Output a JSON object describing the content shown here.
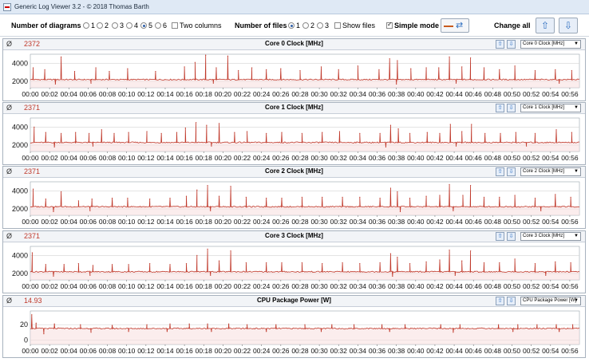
{
  "window": {
    "title": "Generic Log Viewer 3.2 - © 2018 Thomas Barth"
  },
  "toolbar": {
    "diagrams_label": "Number of diagrams",
    "diagram_options": [
      "1",
      "2",
      "3",
      "4",
      "5",
      "6"
    ],
    "diagram_selected": "5",
    "two_columns_label": "Two columns",
    "two_columns_checked": false,
    "files_label": "Number of files",
    "file_options": [
      "1",
      "2",
      "3"
    ],
    "file_selected": "1",
    "show_files_label": "Show files",
    "show_files_checked": false,
    "simple_mode_label": "Simple mode",
    "simple_mode_checked": true,
    "change_all_label": "Change all",
    "up_icon": "arrow-up-icon",
    "down_icon": "arrow-down-icon"
  },
  "colors": {
    "series": "#c0392b",
    "fill": "#f7dede",
    "grid": "#d4d4d4"
  },
  "x_ticks": [
    "00:00",
    "00:02",
    "00:04",
    "00:06",
    "00:08",
    "00:10",
    "00:12",
    "00:14",
    "00:16",
    "00:18",
    "00:20",
    "00:22",
    "00:24",
    "00:26",
    "00:28",
    "00:30",
    "00:32",
    "00:34",
    "00:36",
    "00:38",
    "00:40",
    "00:42",
    "00:44",
    "00:46",
    "00:48",
    "00:50",
    "00:52",
    "00:54",
    "00:56"
  ],
  "panels": [
    {
      "avg_symbol": "Ø",
      "avg": "2372",
      "title": "Core 0 Clock [MHz]",
      "selector": "Core 0 Clock [MHz]",
      "chart_data": {
        "type": "line",
        "x_unit": "min",
        "y_ticks": [
          2000,
          4000
        ],
        "ylim": [
          1300,
          5000
        ],
        "baseline": 2200,
        "spikes": [
          [
            0.3,
            3500
          ],
          [
            1.5,
            3300
          ],
          [
            3.2,
            4700
          ],
          [
            4.6,
            3100
          ],
          [
            6.8,
            3500
          ],
          [
            8.2,
            3100
          ],
          [
            10.1,
            3400
          ],
          [
            13,
            3100
          ],
          [
            16,
            3600
          ],
          [
            17.1,
            4100
          ],
          [
            18.2,
            4900
          ],
          [
            19.3,
            3500
          ],
          [
            20.5,
            4800
          ],
          [
            21.6,
            3200
          ],
          [
            23,
            3500
          ],
          [
            24.5,
            3300
          ],
          [
            26,
            3400
          ],
          [
            28,
            3200
          ],
          [
            30.2,
            3600
          ],
          [
            32,
            3300
          ],
          [
            34,
            3700
          ],
          [
            36.2,
            3300
          ],
          [
            37.3,
            4500
          ],
          [
            38.1,
            4300
          ],
          [
            39.5,
            3400
          ],
          [
            41.1,
            3500
          ],
          [
            42.4,
            3500
          ],
          [
            43.5,
            4700
          ],
          [
            44.8,
            3600
          ],
          [
            45.7,
            4600
          ],
          [
            47.1,
            3500
          ],
          [
            48.7,
            3300
          ],
          [
            50.3,
            3700
          ],
          [
            52.4,
            3200
          ],
          [
            54.5,
            3300
          ],
          [
            56.2,
            3200
          ]
        ],
        "dips": [
          [
            2.6,
            1700
          ],
          [
            6.3,
            1800
          ],
          [
            19,
            1800
          ],
          [
            38,
            1700
          ],
          [
            44.2,
            1800
          ],
          [
            54.9,
            1800
          ]
        ]
      }
    },
    {
      "avg_symbol": "Ø",
      "avg": "2371",
      "title": "Core 1 Clock [MHz]",
      "selector": "Core 1 Clock [MHz]",
      "chart_data": {
        "type": "line",
        "x_unit": "min",
        "y_ticks": [
          2000,
          4000
        ],
        "ylim": [
          1300,
          5000
        ],
        "baseline": 2300,
        "spikes": [
          [
            0.4,
            4000
          ],
          [
            1.6,
            3400
          ],
          [
            3.2,
            3300
          ],
          [
            4.7,
            3400
          ],
          [
            6.1,
            3300
          ],
          [
            7.4,
            3700
          ],
          [
            8.7,
            3300
          ],
          [
            10.2,
            3400
          ],
          [
            12.1,
            3500
          ],
          [
            13.6,
            3300
          ],
          [
            15.2,
            3400
          ],
          [
            16.1,
            3900
          ],
          [
            17.2,
            4500
          ],
          [
            18.3,
            4200
          ],
          [
            19.6,
            4400
          ],
          [
            21.2,
            3400
          ],
          [
            22.5,
            3500
          ],
          [
            24.5,
            3300
          ],
          [
            26.1,
            3400
          ],
          [
            28.2,
            3300
          ],
          [
            30.3,
            3400
          ],
          [
            32.1,
            3500
          ],
          [
            34.2,
            3300
          ],
          [
            36.3,
            3300
          ],
          [
            37.4,
            4200
          ],
          [
            38.2,
            3800
          ],
          [
            39.4,
            3300
          ],
          [
            41.2,
            3400
          ],
          [
            42.5,
            3300
          ],
          [
            43.6,
            4300
          ],
          [
            44.8,
            3500
          ],
          [
            45.8,
            4300
          ],
          [
            47.2,
            3300
          ],
          [
            48.8,
            3300
          ],
          [
            50.4,
            3400
          ],
          [
            52.4,
            3300
          ],
          [
            54.6,
            3700
          ],
          [
            56.2,
            3400
          ]
        ],
        "dips": [
          [
            2.5,
            1800
          ],
          [
            6.5,
            1900
          ],
          [
            18.8,
            1900
          ],
          [
            36.9,
            1800
          ],
          [
            44.2,
            1900
          ],
          [
            51.5,
            1900
          ]
        ]
      }
    },
    {
      "avg_symbol": "Ø",
      "avg": "2371",
      "title": "Core 2 Clock [MHz]",
      "selector": "Core 2 Clock [MHz]",
      "chart_data": {
        "type": "line",
        "x_unit": "min",
        "y_ticks": [
          2000,
          4000
        ],
        "ylim": [
          1300,
          5000
        ],
        "baseline": 2250,
        "spikes": [
          [
            0.3,
            4200
          ],
          [
            1.6,
            3100
          ],
          [
            3.2,
            3900
          ],
          [
            5,
            2900
          ],
          [
            6.4,
            3100
          ],
          [
            8.5,
            3200
          ],
          [
            10.1,
            3200
          ],
          [
            12.4,
            3100
          ],
          [
            14.5,
            3200
          ],
          [
            16.2,
            3400
          ],
          [
            17.3,
            4100
          ],
          [
            18.4,
            4600
          ],
          [
            19.6,
            3400
          ],
          [
            20.8,
            4500
          ],
          [
            22.4,
            3300
          ],
          [
            24.5,
            3200
          ],
          [
            26.1,
            3200
          ],
          [
            28.2,
            3300
          ],
          [
            30.3,
            3300
          ],
          [
            32.4,
            3300
          ],
          [
            34.2,
            3300
          ],
          [
            36.3,
            3200
          ],
          [
            37.4,
            4300
          ],
          [
            38.1,
            3900
          ],
          [
            39.4,
            3200
          ],
          [
            41.1,
            3400
          ],
          [
            42.5,
            3500
          ],
          [
            43.5,
            4700
          ],
          [
            44.9,
            3500
          ],
          [
            45.7,
            4600
          ],
          [
            47.1,
            3300
          ],
          [
            48.7,
            3300
          ],
          [
            50.3,
            3500
          ],
          [
            52.4,
            3200
          ],
          [
            54.5,
            3600
          ],
          [
            56.1,
            3300
          ]
        ],
        "dips": [
          [
            2.4,
            1700
          ],
          [
            6.2,
            1800
          ],
          [
            18.7,
            1800
          ],
          [
            38.4,
            1700
          ],
          [
            43.9,
            1800
          ],
          [
            53,
            1800
          ]
        ]
      }
    },
    {
      "avg_symbol": "Ø",
      "avg": "2371",
      "title": "Core 3 Clock [MHz]",
      "selector": "Core 3 Clock [MHz]",
      "chart_data": {
        "type": "line",
        "x_unit": "min",
        "y_ticks": [
          2000,
          4000
        ],
        "ylim": [
          1300,
          5000
        ],
        "baseline": 2200,
        "spikes": [
          [
            0.2,
            4300
          ],
          [
            1.6,
            3000
          ],
          [
            3.5,
            3000
          ],
          [
            5,
            3100
          ],
          [
            6.5,
            2900
          ],
          [
            8.5,
            3000
          ],
          [
            10.2,
            3000
          ],
          [
            12.4,
            3100
          ],
          [
            14.5,
            3000
          ],
          [
            16.2,
            3100
          ],
          [
            17.3,
            4000
          ],
          [
            18.4,
            4700
          ],
          [
            19.6,
            3400
          ],
          [
            20.8,
            4500
          ],
          [
            22.4,
            3200
          ],
          [
            24.5,
            3200
          ],
          [
            26.1,
            3200
          ],
          [
            28.2,
            3200
          ],
          [
            30.3,
            3100
          ],
          [
            32.4,
            3200
          ],
          [
            34.2,
            3100
          ],
          [
            36.3,
            3200
          ],
          [
            37.4,
            4200
          ],
          [
            38.1,
            3800
          ],
          [
            39.4,
            3100
          ],
          [
            41.1,
            3300
          ],
          [
            42.5,
            3500
          ],
          [
            43.5,
            4600
          ],
          [
            44.8,
            3400
          ],
          [
            45.7,
            4500
          ],
          [
            47.1,
            3200
          ],
          [
            48.7,
            3200
          ],
          [
            50.3,
            3600
          ],
          [
            52.4,
            3100
          ],
          [
            54.5,
            3300
          ],
          [
            56.1,
            3200
          ]
        ],
        "dips": [
          [
            2.4,
            1700
          ],
          [
            6.2,
            1800
          ],
          [
            18.7,
            1800
          ],
          [
            37.6,
            1700
          ],
          [
            44.1,
            1800
          ],
          [
            53.5,
            1800
          ]
        ]
      }
    },
    {
      "avg_symbol": "Ø",
      "avg": "14.93",
      "title": "CPU Package Power [W]",
      "selector": "CPU Package Power [W]",
      "chart_data": {
        "type": "line",
        "x_unit": "min",
        "y_ticks": [
          0,
          20
        ],
        "ylim": [
          -6,
          38
        ],
        "baseline": 15,
        "spikes": [
          [
            0.15,
            33
          ],
          [
            0.6,
            22
          ],
          [
            2.5,
            21
          ],
          [
            5.2,
            20
          ],
          [
            8.5,
            19
          ],
          [
            12.1,
            20
          ],
          [
            14.5,
            21
          ],
          [
            16.5,
            21
          ],
          [
            18.4,
            21
          ],
          [
            20.6,
            21
          ],
          [
            22.5,
            20
          ],
          [
            25.5,
            20
          ],
          [
            28.5,
            20
          ],
          [
            31.3,
            20
          ],
          [
            33.6,
            20
          ],
          [
            36.5,
            20
          ],
          [
            38.9,
            20
          ],
          [
            42.6,
            20
          ],
          [
            44.6,
            20
          ],
          [
            48.6,
            20
          ],
          [
            50.6,
            20
          ],
          [
            52.6,
            20
          ],
          [
            54.6,
            20
          ],
          [
            56.3,
            20
          ]
        ],
        "dips": [
          [
            1.4,
            8
          ],
          [
            6.3,
            10
          ],
          [
            10.2,
            11
          ],
          [
            14.2,
            11
          ],
          [
            18.8,
            11
          ],
          [
            24.5,
            11
          ],
          [
            30.2,
            11
          ],
          [
            37.3,
            11
          ],
          [
            43.9,
            10
          ],
          [
            50.1,
            11
          ],
          [
            54.9,
            11
          ]
        ]
      }
    }
  ]
}
